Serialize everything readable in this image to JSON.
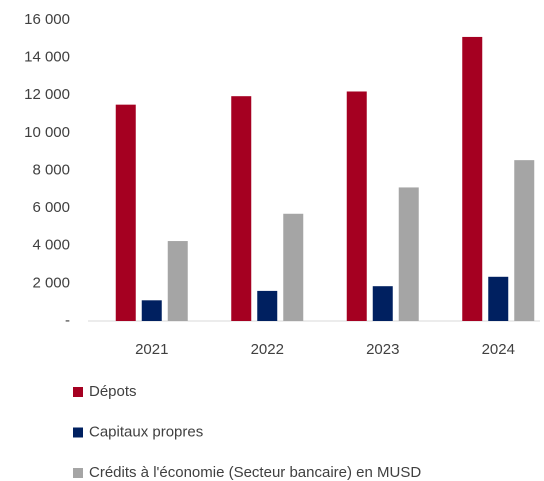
{
  "chart_data": {
    "type": "bar",
    "categories": [
      "2021",
      "2022",
      "2023",
      "2024"
    ],
    "series": [
      {
        "name": "Dépots",
        "color": "#a50021",
        "values": [
          11500,
          11950,
          12200,
          15100
        ]
      },
      {
        "name": "Capitaux propres",
        "color": "#002060",
        "values": [
          1100,
          1600,
          1850,
          2350
        ]
      },
      {
        "name": "Crédits à l'économie (Secteur bancaire) en MUSD",
        "color": "#a5a5a5",
        "values": [
          4250,
          5700,
          7100,
          8550
        ]
      }
    ],
    "ylim": [
      0,
      16000
    ],
    "yticks": [
      {
        "value": 0,
        "label": "-"
      },
      {
        "value": 2000,
        "label": "2 000"
      },
      {
        "value": 4000,
        "label": "4 000"
      },
      {
        "value": 6000,
        "label": "6 000"
      },
      {
        "value": 8000,
        "label": "8 000"
      },
      {
        "value": 10000,
        "label": "10 000"
      },
      {
        "value": 12000,
        "label": "12 000"
      },
      {
        "value": 14000,
        "label": "14 000"
      },
      {
        "value": 16000,
        "label": "16 000"
      }
    ],
    "grid": false,
    "legend": "bottom"
  }
}
